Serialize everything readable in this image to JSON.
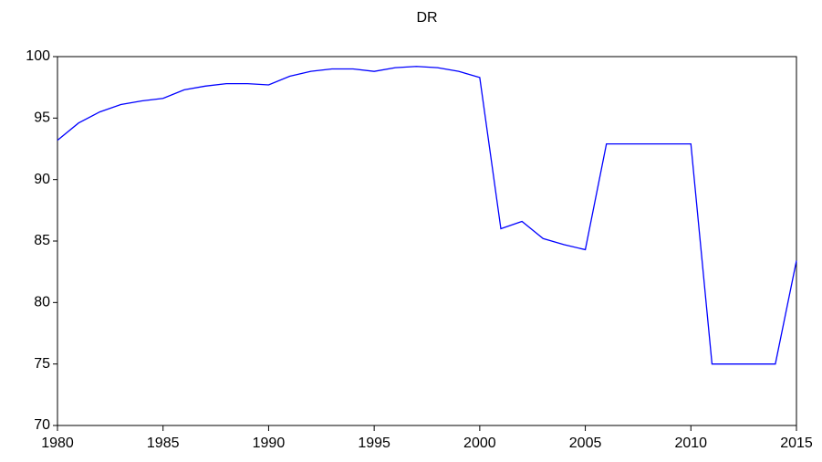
{
  "chart_data": {
    "type": "line",
    "title": "DR",
    "x": [
      1980,
      1981,
      1982,
      1983,
      1984,
      1985,
      1986,
      1987,
      1988,
      1989,
      1990,
      1991,
      1992,
      1993,
      1994,
      1995,
      1996,
      1997,
      1998,
      1999,
      2000,
      2001,
      2002,
      2003,
      2004,
      2005,
      2006,
      2007,
      2008,
      2009,
      2010,
      2011,
      2012,
      2013,
      2014,
      2015
    ],
    "series": [
      {
        "name": "DR",
        "color": "#0000ff",
        "values": [
          93.2,
          94.6,
          95.5,
          96.1,
          96.4,
          96.6,
          97.3,
          97.6,
          97.8,
          97.8,
          97.7,
          98.4,
          98.8,
          99.0,
          99.0,
          98.8,
          99.1,
          99.2,
          99.1,
          98.8,
          98.3,
          86.0,
          86.6,
          85.2,
          84.7,
          84.3,
          92.9,
          92.9,
          92.9,
          92.9,
          92.9,
          75.0,
          75.0,
          75.0,
          75.0,
          83.4
        ]
      }
    ],
    "xlim": [
      1980,
      2015
    ],
    "xticks": [
      1980,
      1985,
      1990,
      1995,
      2000,
      2005,
      2010,
      2015
    ],
    "ylim": [
      70,
      100
    ],
    "yticks": [
      70,
      75,
      80,
      85,
      90,
      95,
      100
    ],
    "grid": false
  }
}
